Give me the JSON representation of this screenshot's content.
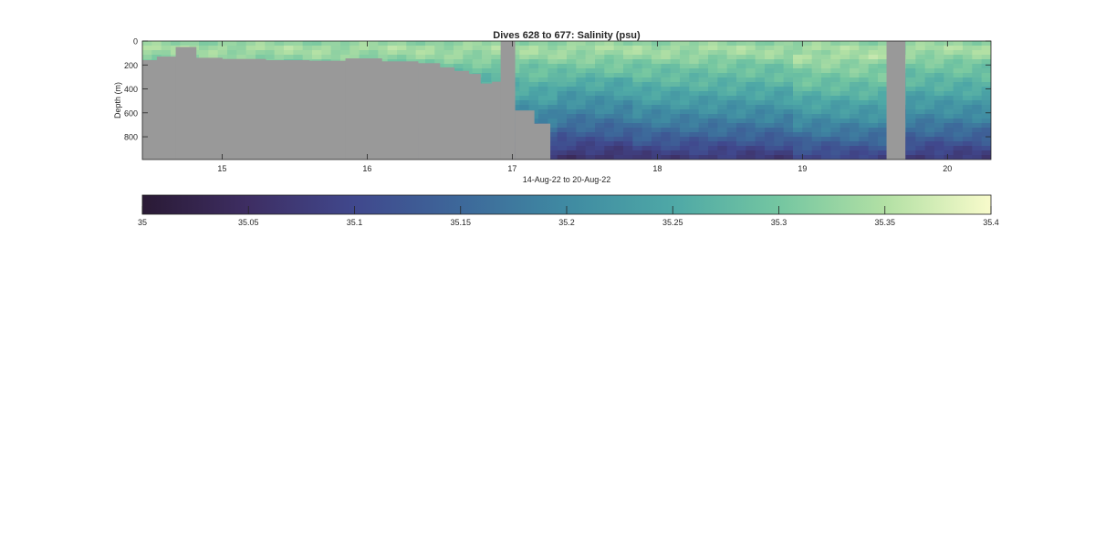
{
  "chart_data": {
    "type": "heatmap",
    "title": "Dives 628 to 677: Salinity (psu)",
    "xlabel": "14-Aug-22 to 20-Aug-22",
    "ylabel": "Depth (m)",
    "x_unit": "day of month (Aug 2022)",
    "xlim": [
      14.45,
      20.3
    ],
    "ylim": [
      0,
      990
    ],
    "y_direction": "reversed",
    "xticks": [
      15,
      16,
      17,
      18,
      19,
      20
    ],
    "xtick_labels": [
      "15",
      "16",
      "17",
      "18",
      "19",
      "20"
    ],
    "yticks": [
      0,
      200,
      400,
      600,
      800
    ],
    "ytick_labels": [
      "0",
      "200",
      "400",
      "600",
      "800"
    ],
    "no_data_color": "#999999",
    "grid": false,
    "colorbar": {
      "orientation": "horizontal",
      "placement": "below",
      "min": 35,
      "max": 35.4,
      "ticks": [
        35,
        35.05,
        35.1,
        35.15,
        35.2,
        35.25,
        35.3,
        35.35,
        35.4
      ],
      "tick_labels": [
        "35",
        "35.05",
        "35.1",
        "35.15",
        "35.2",
        "35.25",
        "35.3",
        "35.35",
        "35.4"
      ],
      "colormap": [
        "#2a1a35",
        "#3e2e63",
        "#40488d",
        "#3d689a",
        "#3f8aa2",
        "#4ea8a6",
        "#74c6a1",
        "#b2e0a4",
        "#f8fbcb"
      ]
    },
    "max_depth_reached": [
      {
        "x_start": 14.45,
        "x_end": 14.55,
        "depth": 160
      },
      {
        "x_start": 14.55,
        "x_end": 14.68,
        "depth": 130
      },
      {
        "x_start": 14.68,
        "x_end": 14.82,
        "depth": 50
      },
      {
        "x_start": 14.82,
        "x_end": 15.0,
        "depth": 140
      },
      {
        "x_start": 15.0,
        "x_end": 15.3,
        "depth": 150
      },
      {
        "x_start": 15.3,
        "x_end": 15.6,
        "depth": 160
      },
      {
        "x_start": 15.6,
        "x_end": 15.85,
        "depth": 165
      },
      {
        "x_start": 15.85,
        "x_end": 16.1,
        "depth": 145
      },
      {
        "x_start": 16.1,
        "x_end": 16.35,
        "depth": 170
      },
      {
        "x_start": 16.35,
        "x_end": 16.5,
        "depth": 185
      },
      {
        "x_start": 16.5,
        "x_end": 16.6,
        "depth": 220
      },
      {
        "x_start": 16.6,
        "x_end": 16.7,
        "depth": 250
      },
      {
        "x_start": 16.7,
        "x_end": 16.78,
        "depth": 275
      },
      {
        "x_start": 16.78,
        "x_end": 16.86,
        "depth": 355
      },
      {
        "x_start": 16.86,
        "x_end": 16.92,
        "depth": 340
      },
      {
        "x_start": 17.02,
        "x_end": 17.15,
        "depth": 580
      },
      {
        "x_start": 17.15,
        "x_end": 17.26,
        "depth": 690
      },
      {
        "x_start": 17.26,
        "x_end": 19.58,
        "depth": 990
      },
      {
        "x_start": 19.71,
        "x_end": 20.3,
        "depth": 990
      }
    ],
    "no_data_intervals": [
      {
        "x_start": 16.92,
        "x_end": 17.02
      },
      {
        "x_start": 19.58,
        "x_end": 19.71
      }
    ],
    "salinity_profile": [
      {
        "depth": 0,
        "salinity": 35.22
      },
      {
        "depth": 20,
        "salinity": 35.33
      },
      {
        "depth": 60,
        "salinity": 35.34
      },
      {
        "depth": 120,
        "salinity": 35.33
      },
      {
        "depth": 200,
        "salinity": 35.3
      },
      {
        "depth": 350,
        "salinity": 35.27
      },
      {
        "depth": 500,
        "salinity": 35.23
      },
      {
        "depth": 650,
        "salinity": 35.19
      },
      {
        "depth": 800,
        "salinity": 35.14
      },
      {
        "depth": 900,
        "salinity": 35.1
      },
      {
        "depth": 990,
        "salinity": 35.07
      }
    ]
  }
}
